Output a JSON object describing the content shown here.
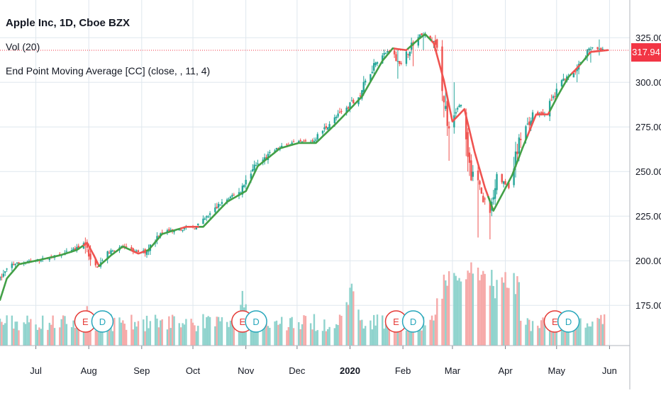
{
  "header": {
    "title": "Apple Inc, 1D, Cboe BZX",
    "volume_label": "Vol (20)",
    "indicator_label": "End Point Moving Average [CC] (close, , 11, 4)"
  },
  "last_price": "317.94",
  "colors": {
    "up": "#26a69a",
    "down": "#ef5350",
    "vol_up": "#8fd3cd",
    "vol_down": "#f6a9a8",
    "ma_up": "#43a047",
    "ma_down": "#ef5350",
    "price_line": "#f23645",
    "grid": "#dfe7ee",
    "axis_text": "#131722",
    "earnings_badge": "#e53935",
    "dividend_badge": "#26a6bb"
  },
  "chart_data": {
    "type": "candlestick",
    "ticker": "Apple Inc, 1D, Cboe BZX",
    "x_axis_labels": [
      "Jul",
      "Aug",
      "Sep",
      "Oct",
      "Nov",
      "Dec",
      "2020",
      "Feb",
      "Mar",
      "Apr",
      "May",
      "Jun"
    ],
    "y_axis_ticks": [
      "175.00",
      "200.00",
      "225.00",
      "250.00",
      "275.00",
      "300.00",
      "325.00"
    ],
    "y_range": [
      160,
      335
    ],
    "close_path": [
      [
        "2019-06-10",
        190
      ],
      [
        "2019-06-17",
        198
      ],
      [
        "2019-06-24",
        199
      ],
      [
        "2019-07-01",
        200
      ],
      [
        "2019-07-15",
        203
      ],
      [
        "2019-07-26",
        207
      ],
      [
        "2019-07-31",
        210
      ],
      [
        "2019-08-02",
        198
      ],
      [
        "2019-08-06",
        197
      ],
      [
        "2019-08-13",
        205
      ],
      [
        "2019-08-20",
        208
      ],
      [
        "2019-08-28",
        205
      ],
      [
        "2019-09-03",
        205
      ],
      [
        "2019-09-12",
        216
      ],
      [
        "2019-09-25",
        218
      ],
      [
        "2019-10-03",
        219
      ],
      [
        "2019-10-10",
        225
      ],
      [
        "2019-10-17",
        232
      ],
      [
        "2019-10-28",
        238
      ],
      [
        "2019-11-05",
        252
      ],
      [
        "2019-11-18",
        262
      ],
      [
        "2019-11-28",
        266
      ],
      [
        "2019-12-10",
        267
      ],
      [
        "2019-12-20",
        277
      ],
      [
        "2020-01-06",
        292
      ],
      [
        "2020-01-16",
        312
      ],
      [
        "2020-01-24",
        318
      ],
      [
        "2020-01-31",
        310
      ],
      [
        "2020-02-06",
        321
      ],
      [
        "2020-02-12",
        327
      ],
      [
        "2020-02-20",
        322
      ],
      [
        "2020-02-24",
        298
      ],
      [
        "2020-02-28",
        273
      ],
      [
        "2020-03-06",
        289
      ],
      [
        "2020-03-12",
        249
      ],
      [
        "2020-03-16",
        243
      ],
      [
        "2020-03-23",
        225
      ],
      [
        "2020-03-27",
        247
      ],
      [
        "2020-04-03",
        241
      ],
      [
        "2020-04-09",
        266
      ],
      [
        "2020-04-17",
        282
      ],
      [
        "2020-04-24",
        283
      ],
      [
        "2020-04-30",
        293
      ],
      [
        "2020-05-06",
        303
      ],
      [
        "2020-05-13",
        307
      ],
      [
        "2020-05-20",
        319
      ],
      [
        "2020-05-29",
        318
      ]
    ],
    "ma_path": [
      [
        "2019-06-10",
        178
      ],
      [
        "2019-06-14",
        190
      ],
      [
        "2019-06-21",
        198
      ],
      [
        "2019-07-01",
        200
      ],
      [
        "2019-07-15",
        203
      ],
      [
        "2019-07-25",
        206
      ],
      [
        "2019-07-31",
        210
      ],
      [
        "2019-08-04",
        203
      ],
      [
        "2019-08-07",
        197
      ],
      [
        "2019-08-14",
        203
      ],
      [
        "2019-08-21",
        208
      ],
      [
        "2019-08-30",
        204
      ],
      [
        "2019-09-05",
        206
      ],
      [
        "2019-09-13",
        215
      ],
      [
        "2019-09-27",
        219
      ],
      [
        "2019-10-07",
        219
      ],
      [
        "2019-10-14",
        226
      ],
      [
        "2019-10-21",
        233
      ],
      [
        "2019-11-01",
        239
      ],
      [
        "2019-11-08",
        253
      ],
      [
        "2019-11-21",
        263
      ],
      [
        "2019-12-02",
        266
      ],
      [
        "2019-12-12",
        266
      ],
      [
        "2019-12-24",
        277
      ],
      [
        "2020-01-08",
        292
      ],
      [
        "2020-01-20",
        312
      ],
      [
        "2020-01-26",
        319
      ],
      [
        "2020-02-03",
        318
      ],
      [
        "2020-02-10",
        324
      ],
      [
        "2020-02-14",
        327
      ],
      [
        "2020-02-19",
        322
      ],
      [
        "2020-02-25",
        301
      ],
      [
        "2020-03-01",
        278
      ],
      [
        "2020-03-08",
        285
      ],
      [
        "2020-03-14",
        261
      ],
      [
        "2020-03-20",
        241
      ],
      [
        "2020-03-25",
        228
      ],
      [
        "2020-03-30",
        237
      ],
      [
        "2020-04-05",
        248
      ],
      [
        "2020-04-11",
        263
      ],
      [
        "2020-04-19",
        282
      ],
      [
        "2020-04-26",
        282
      ],
      [
        "2020-05-02",
        293
      ],
      [
        "2020-05-08",
        303
      ],
      [
        "2020-05-14",
        309
      ],
      [
        "2020-05-21",
        317
      ],
      [
        "2020-05-31",
        318
      ]
    ],
    "ma_red_segments": [
      [
        "2019-07-29",
        "2019-08-06"
      ],
      [
        "2019-08-26",
        "2019-09-03"
      ],
      [
        "2019-09-24",
        "2019-10-04"
      ],
      [
        "2020-01-27",
        "2020-02-03"
      ],
      [
        "2020-02-18",
        "2020-03-21"
      ],
      [
        "2020-04-14",
        "2020-04-26"
      ],
      [
        "2020-05-10",
        "2020-05-14"
      ],
      [
        "2020-05-20",
        "2020-05-31"
      ]
    ],
    "spikes": [
      [
        "2019-07-30",
        213,
        204
      ],
      [
        "2020-01-29",
        319,
        302
      ],
      [
        "2020-02-07",
        322,
        309
      ],
      [
        "2020-02-13",
        328,
        318
      ],
      [
        "2020-02-28",
        278,
        256
      ],
      [
        "2020-03-02",
        300,
        282
      ],
      [
        "2020-03-16",
        248,
        213
      ],
      [
        "2020-03-23",
        229,
        212
      ],
      [
        "2020-04-09",
        271,
        256
      ],
      [
        "2020-05-13",
        310,
        300
      ],
      [
        "2020-05-21",
        320,
        311
      ],
      [
        "2020-05-26",
        324,
        315
      ]
    ],
    "events": [
      {
        "type": "E",
        "date": "2019-07-30"
      },
      {
        "type": "D",
        "date": "2019-08-09"
      },
      {
        "type": "E",
        "date": "2019-10-30"
      },
      {
        "type": "D",
        "date": "2019-11-07"
      },
      {
        "type": "E",
        "date": "2020-01-28"
      },
      {
        "type": "D",
        "date": "2020-02-07"
      },
      {
        "type": "E",
        "date": "2020-04-30"
      },
      {
        "type": "D",
        "date": "2020-05-08"
      }
    ],
    "volume_peaks": [
      [
        "2019-07-31",
        0.45
      ],
      [
        "2019-10-30",
        0.6
      ],
      [
        "2020-01-02",
        0.8
      ],
      [
        "2020-02-24",
        0.55
      ],
      [
        "2020-03-02",
        0.95
      ],
      [
        "2020-03-09",
        0.9
      ],
      [
        "2020-03-12",
        0.95
      ],
      [
        "2020-03-16",
        0.85
      ],
      [
        "2020-03-20",
        0.95
      ],
      [
        "2020-05-12",
        0.4
      ]
    ],
    "last_price": 317.94
  }
}
